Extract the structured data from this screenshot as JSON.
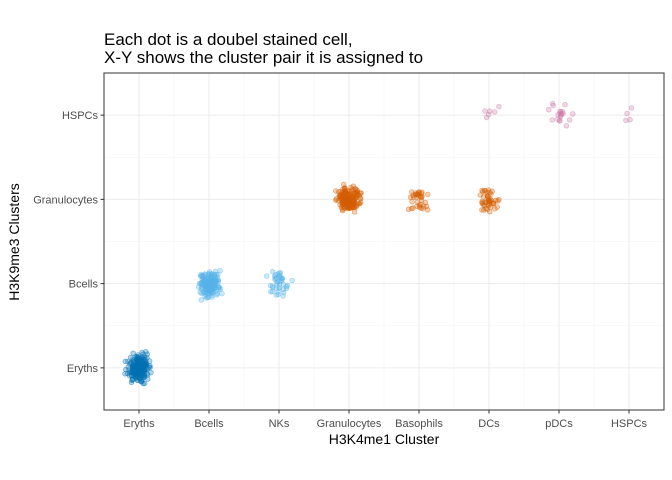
{
  "chart_data": {
    "type": "scatter",
    "title_lines": [
      "Each dot is a doubel stained cell,",
      "X-Y shows the cluster pair it is assigned to"
    ],
    "xlabel": "H3K4me1 Cluster",
    "ylabel": "H3K9me3 Clusters",
    "x_categories": [
      "Eryths",
      "Bcells",
      "NKs",
      "Granulocytes",
      "Basophils",
      "DCs",
      "pDCs",
      "HSPCs"
    ],
    "y_categories": [
      "Eryths",
      "Bcells",
      "Granulocytes",
      "HSPCs"
    ],
    "grid": true,
    "legend": "none",
    "point_opacity": 0.3,
    "groups": [
      {
        "x": "Eryths",
        "y": "Eryths",
        "count": 200,
        "color": "#0072B2"
      },
      {
        "x": "Bcells",
        "y": "Bcells",
        "count": 160,
        "color": "#56B4E9"
      },
      {
        "x": "NKs",
        "y": "Bcells",
        "count": 40,
        "color": "#56B4E9"
      },
      {
        "x": "Granulocytes",
        "y": "Granulocytes",
        "count": 170,
        "color": "#D55E00"
      },
      {
        "x": "Basophils",
        "y": "Granulocytes",
        "count": 35,
        "color": "#D55E00"
      },
      {
        "x": "DCs",
        "y": "Granulocytes",
        "count": 45,
        "color": "#D55E00"
      },
      {
        "x": "DCs",
        "y": "HSPCs",
        "count": 6,
        "color": "#CC79A7"
      },
      {
        "x": "pDCs",
        "y": "HSPCs",
        "count": 20,
        "color": "#CC79A7"
      },
      {
        "x": "HSPCs",
        "y": "HSPCs",
        "count": 4,
        "color": "#CC79A7"
      }
    ]
  }
}
